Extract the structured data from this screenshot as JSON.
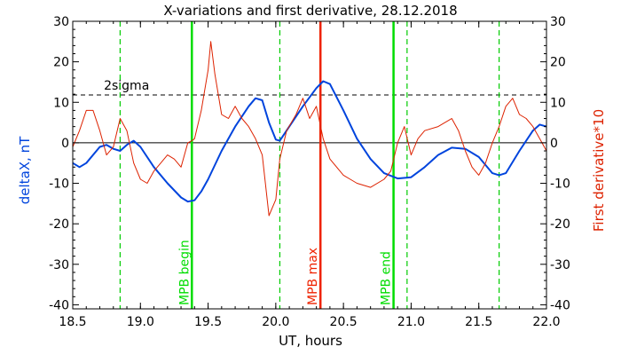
{
  "chart_data": {
    "type": "line",
    "title": "X-variations and first derivative, 28.12.2018",
    "xlabel": "UT, hours",
    "ylabel_left": "deltaX, nT",
    "ylabel_right": "First derivative*10",
    "xlim": [
      18.5,
      22.0
    ],
    "ylim": [
      -41,
      30
    ],
    "x_ticks": [
      "18.5",
      "19.0",
      "19.5",
      "20.0",
      "20.5",
      "21.0",
      "21.5",
      "22.0"
    ],
    "y_ticks": [
      "30",
      "20",
      "10",
      "0",
      "-10",
      "-20",
      "-30",
      "-40"
    ],
    "sigma_level": 11.8,
    "sigma_label": "2sigma",
    "zero_line": 0,
    "vertical_markers": [
      {
        "x": 19.38,
        "label": "MPB begin",
        "style": "solid",
        "color": "#00dd00"
      },
      {
        "x": 20.33,
        "label": "MPB max",
        "style": "solid",
        "color": "#ee2200"
      },
      {
        "x": 20.87,
        "label": "MPB end",
        "style": "solid",
        "color": "#00dd00"
      },
      {
        "x": 18.85,
        "label": "",
        "style": "dashed",
        "color": "#00cc00"
      },
      {
        "x": 20.03,
        "label": "",
        "style": "dashed",
        "color": "#00cc00"
      },
      {
        "x": 20.97,
        "label": "",
        "style": "dashed",
        "color": "#00cc00"
      },
      {
        "x": 21.65,
        "label": "",
        "style": "dashed",
        "color": "#00cc00"
      }
    ],
    "series": [
      {
        "name": "deltaX",
        "color": "#0044dd",
        "x": [
          18.5,
          18.55,
          18.6,
          18.7,
          18.75,
          18.8,
          18.85,
          18.9,
          18.95,
          19.0,
          19.1,
          19.2,
          19.3,
          19.35,
          19.4,
          19.45,
          19.5,
          19.6,
          19.7,
          19.8,
          19.85,
          19.9,
          19.95,
          20.0,
          20.03,
          20.1,
          20.2,
          20.3,
          20.35,
          20.4,
          20.5,
          20.6,
          20.7,
          20.8,
          20.9,
          21.0,
          21.1,
          21.2,
          21.3,
          21.4,
          21.5,
          21.6,
          21.65,
          21.7,
          21.8,
          21.9,
          21.95,
          22.0
        ],
        "y": [
          -5,
          -6,
          -5,
          -1,
          -0.5,
          -1.5,
          -2,
          -0.5,
          0.5,
          -1,
          -6,
          -10,
          -13.5,
          -14.5,
          -14.2,
          -12,
          -9,
          -2,
          4,
          9,
          11,
          10.5,
          5,
          0.8,
          0.5,
          4,
          9,
          13.5,
          15.2,
          14.5,
          8,
          1,
          -4,
          -7.5,
          -8.8,
          -8.5,
          -6,
          -3,
          -1.2,
          -1.5,
          -3.5,
          -7.5,
          -8,
          -7.5,
          -2,
          3,
          4.5,
          4
        ]
      },
      {
        "name": "First derivative*10",
        "color": "#dd2200",
        "x": [
          18.5,
          18.55,
          18.6,
          18.65,
          18.7,
          18.75,
          18.8,
          18.85,
          18.9,
          18.95,
          19.0,
          19.05,
          19.1,
          19.15,
          19.2,
          19.25,
          19.3,
          19.35,
          19.38,
          19.4,
          19.45,
          19.5,
          19.52,
          19.55,
          19.6,
          19.65,
          19.7,
          19.75,
          19.8,
          19.85,
          19.9,
          19.95,
          20.0,
          20.03,
          20.08,
          20.15,
          20.2,
          20.25,
          20.3,
          20.35,
          20.4,
          20.5,
          20.55,
          20.6,
          20.7,
          20.8,
          20.85,
          20.9,
          20.95,
          21.0,
          21.05,
          21.1,
          21.2,
          21.3,
          21.35,
          21.4,
          21.45,
          21.5,
          21.55,
          21.6,
          21.65,
          21.7,
          21.75,
          21.8,
          21.85,
          21.9,
          21.95,
          22.0
        ],
        "y": [
          -1,
          3,
          8,
          8,
          3,
          -3,
          -1,
          6,
          3,
          -5,
          -9,
          -10,
          -7,
          -5,
          -3,
          -4,
          -6,
          0,
          0.5,
          1,
          8,
          18,
          25,
          17,
          7,
          6,
          9,
          6,
          4,
          1,
          -3,
          -18,
          -14,
          -4,
          3,
          7,
          11,
          6,
          9,
          1,
          -4,
          -8,
          -9,
          -10,
          -11,
          -9,
          -7,
          0,
          4,
          -3,
          1,
          3,
          4,
          6,
          3,
          -2,
          -6,
          -8,
          -5,
          0,
          4,
          9,
          11,
          7,
          6,
          4,
          1,
          -2
        ]
      }
    ]
  }
}
